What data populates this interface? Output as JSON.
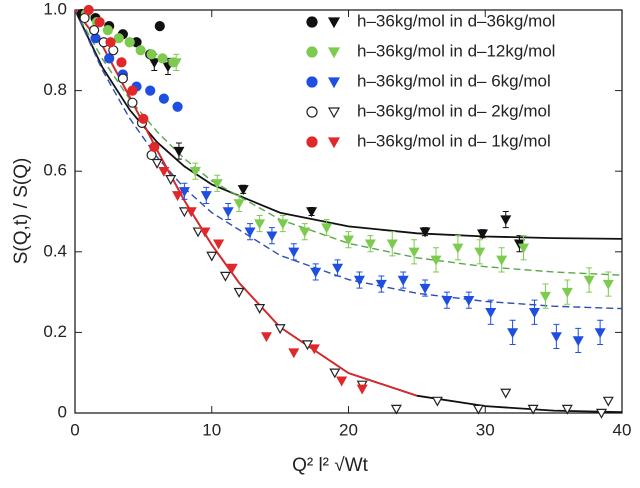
{
  "chart_data": {
    "type": "scatter",
    "xlabel": "Q² l² √Wt",
    "ylabel": "S(Q,t) / S(Q)",
    "xlim": [
      0,
      40
    ],
    "ylim": [
      0,
      1
    ],
    "xticks": [
      0,
      10,
      20,
      30,
      40
    ],
    "yticks": [
      0,
      0.2,
      0.4,
      0.6,
      0.8,
      {
        "value": 1,
        "label": "1.0"
      }
    ],
    "legend": "upper right",
    "series": [
      {
        "name": "h–36kg/mol in d–36kg/mol",
        "color": "#111111",
        "filled": true,
        "circle_x": [
          0.5,
          1.5,
          2.5,
          3.5,
          4.5,
          5.5,
          6.2
        ],
        "circle_values": [
          0.99,
          0.98,
          0.96,
          0.94,
          0.92,
          0.89,
          0.96
        ],
        "triangle_x": [
          5.8,
          6.8,
          7.6,
          12.3,
          17.3,
          25.6,
          29.8,
          31.5,
          32.5
        ],
        "triangle_values": [
          0.87,
          0.86,
          0.65,
          0.555,
          0.5,
          0.45,
          0.445,
          0.48,
          0.42
        ],
        "triangle_errors": [
          0.02,
          0.02,
          0.02,
          0.01,
          0.01,
          0.01,
          0.01,
          0.02,
          0.02
        ]
      },
      {
        "name": "h–36kg/mol in d–12kg/mol",
        "color": "#7ccb4e",
        "filled": true,
        "circle_x": [
          0.8,
          1.6,
          2.4,
          3.2,
          4,
          4.8,
          5.6,
          6.4,
          7.2
        ],
        "circle_values": [
          0.99,
          0.97,
          0.95,
          0.93,
          0.92,
          0.9,
          0.89,
          0.88,
          0.87
        ],
        "triangle_x": [
          7.4,
          8.8,
          10.4,
          12,
          13.5,
          15.2,
          16.8,
          18.4,
          20,
          21.6,
          23.2,
          24.8,
          26.4,
          28,
          29.6,
          31.2,
          32.8,
          34.4,
          36,
          37.6,
          39
        ],
        "triangle_values": [
          0.87,
          0.6,
          0.57,
          0.52,
          0.47,
          0.47,
          0.45,
          0.46,
          0.43,
          0.42,
          0.42,
          0.4,
          0.38,
          0.41,
          0.4,
          0.38,
          0.41,
          0.29,
          0.3,
          0.33,
          0.32
        ],
        "triangle_errors": [
          0.02,
          0.02,
          0.02,
          0.02,
          0.02,
          0.02,
          0.02,
          0.02,
          0.02,
          0.02,
          0.03,
          0.03,
          0.03,
          0.03,
          0.03,
          0.03,
          0.03,
          0.03,
          0.03,
          0.03,
          0.03
        ]
      },
      {
        "name": "h–36kg/mol in d– 6kg/mol",
        "color": "#1f4fe0",
        "filled": true,
        "circle_x": [
          1.5,
          2.5,
          3.5,
          4.5,
          5.5,
          6.5,
          7.5
        ],
        "circle_values": [
          0.93,
          0.88,
          0.84,
          0.81,
          0.8,
          0.78,
          0.76
        ],
        "triangle_x": [
          8,
          9.6,
          11.2,
          12.8,
          14.4,
          16,
          17.6,
          19.2,
          20.8,
          22.4,
          24,
          25.6,
          27.2,
          28.8,
          30.4,
          32,
          33.6,
          35.2,
          36.8,
          38.4
        ],
        "triangle_values": [
          0.55,
          0.54,
          0.5,
          0.45,
          0.44,
          0.4,
          0.35,
          0.36,
          0.33,
          0.32,
          0.33,
          0.31,
          0.28,
          0.28,
          0.25,
          0.2,
          0.25,
          0.19,
          0.18,
          0.2
        ],
        "triangle_errors": [
          0.02,
          0.02,
          0.02,
          0.02,
          0.02,
          0.02,
          0.02,
          0.02,
          0.02,
          0.02,
          0.02,
          0.02,
          0.02,
          0.02,
          0.03,
          0.03,
          0.03,
          0.03,
          0.03,
          0.03
        ]
      },
      {
        "name": "h–36kg/mol in d– 2kg/mol",
        "color": "#222222",
        "filled": false,
        "circle_x": [
          0.7,
          1.4,
          2.1,
          2.8,
          3.5,
          4.2,
          4.9,
          5.6
        ],
        "circle_values": [
          0.98,
          0.95,
          0.92,
          0.9,
          0.83,
          0.77,
          0.72,
          0.64
        ],
        "triangle_x": [
          6,
          7,
          8,
          9,
          10,
          11,
          12,
          13.5,
          15,
          17,
          19,
          21,
          23.5,
          26.5,
          29.5,
          31.5,
          33.5,
          36,
          38.5,
          39
        ],
        "triangle_values": [
          0.62,
          0.58,
          0.5,
          0.45,
          0.39,
          0.34,
          0.3,
          0.26,
          0.21,
          0.17,
          0.1,
          0.07,
          0.01,
          0.03,
          0.01,
          0.05,
          0.01,
          0.01,
          0,
          0.03
        ]
      },
      {
        "name": "h–36kg/mol in d– 1kg/mol",
        "color": "#e0282a",
        "filled": true,
        "circle_x": [
          1,
          1.8,
          2.6,
          3.4,
          4.2,
          5,
          5.8
        ],
        "circle_values": [
          1,
          0.97,
          0.92,
          0.87,
          0.8,
          0.73,
          0.66
        ],
        "triangle_x": [
          6.5,
          7.5,
          8.5,
          9.5,
          10.5,
          11.5,
          14,
          16,
          17.5,
          19.5,
          21
        ],
        "triangle_values": [
          0.6,
          0.54,
          0.5,
          0.45,
          0.42,
          0.36,
          0.19,
          0.15,
          0.16,
          0.08,
          0.06
        ]
      }
    ],
    "fits": [
      {
        "color": "#111111",
        "dashed": false,
        "x": [
          0,
          2,
          4,
          6,
          8,
          10,
          15,
          20,
          25,
          30,
          35,
          40
        ],
        "values": [
          1,
          0.858,
          0.752,
          0.672,
          0.612,
          0.567,
          0.497,
          0.463,
          0.446,
          0.438,
          0.434,
          0.432
        ]
      },
      {
        "color": "#5aa84a",
        "dashed": true,
        "x": [
          0,
          2,
          4,
          6,
          8,
          10,
          15,
          20,
          25,
          30,
          35,
          40
        ],
        "values": [
          1,
          0.879,
          0.779,
          0.698,
          0.631,
          0.576,
          0.48,
          0.421,
          0.385,
          0.363,
          0.35,
          0.342
        ]
      },
      {
        "color": "#2a4fb0",
        "dashed": true,
        "x": [
          0,
          2,
          4,
          6,
          8,
          10,
          15,
          20,
          25,
          30,
          35,
          40
        ],
        "values": [
          1,
          0.851,
          0.731,
          0.635,
          0.558,
          0.497,
          0.391,
          0.331,
          0.297,
          0.277,
          0.265,
          0.259
        ]
      },
      {
        "color": "#111111",
        "dashed": false,
        "x": [
          0,
          2,
          4,
          6,
          8,
          10,
          12,
          15,
          20,
          25,
          30,
          35,
          40
        ],
        "values": [
          1,
          0.912,
          0.784,
          0.652,
          0.527,
          0.417,
          0.323,
          0.213,
          0.099,
          0.043,
          0.017,
          0.006,
          0.002
        ]
      },
      {
        "color": "#e0282a",
        "dashed": false,
        "x": [
          0,
          2,
          4,
          6,
          8,
          10,
          12,
          15,
          20,
          25
        ],
        "values": [
          1,
          0.912,
          0.784,
          0.652,
          0.527,
          0.417,
          0.323,
          0.213,
          0.099,
          0.043
        ]
      }
    ]
  }
}
